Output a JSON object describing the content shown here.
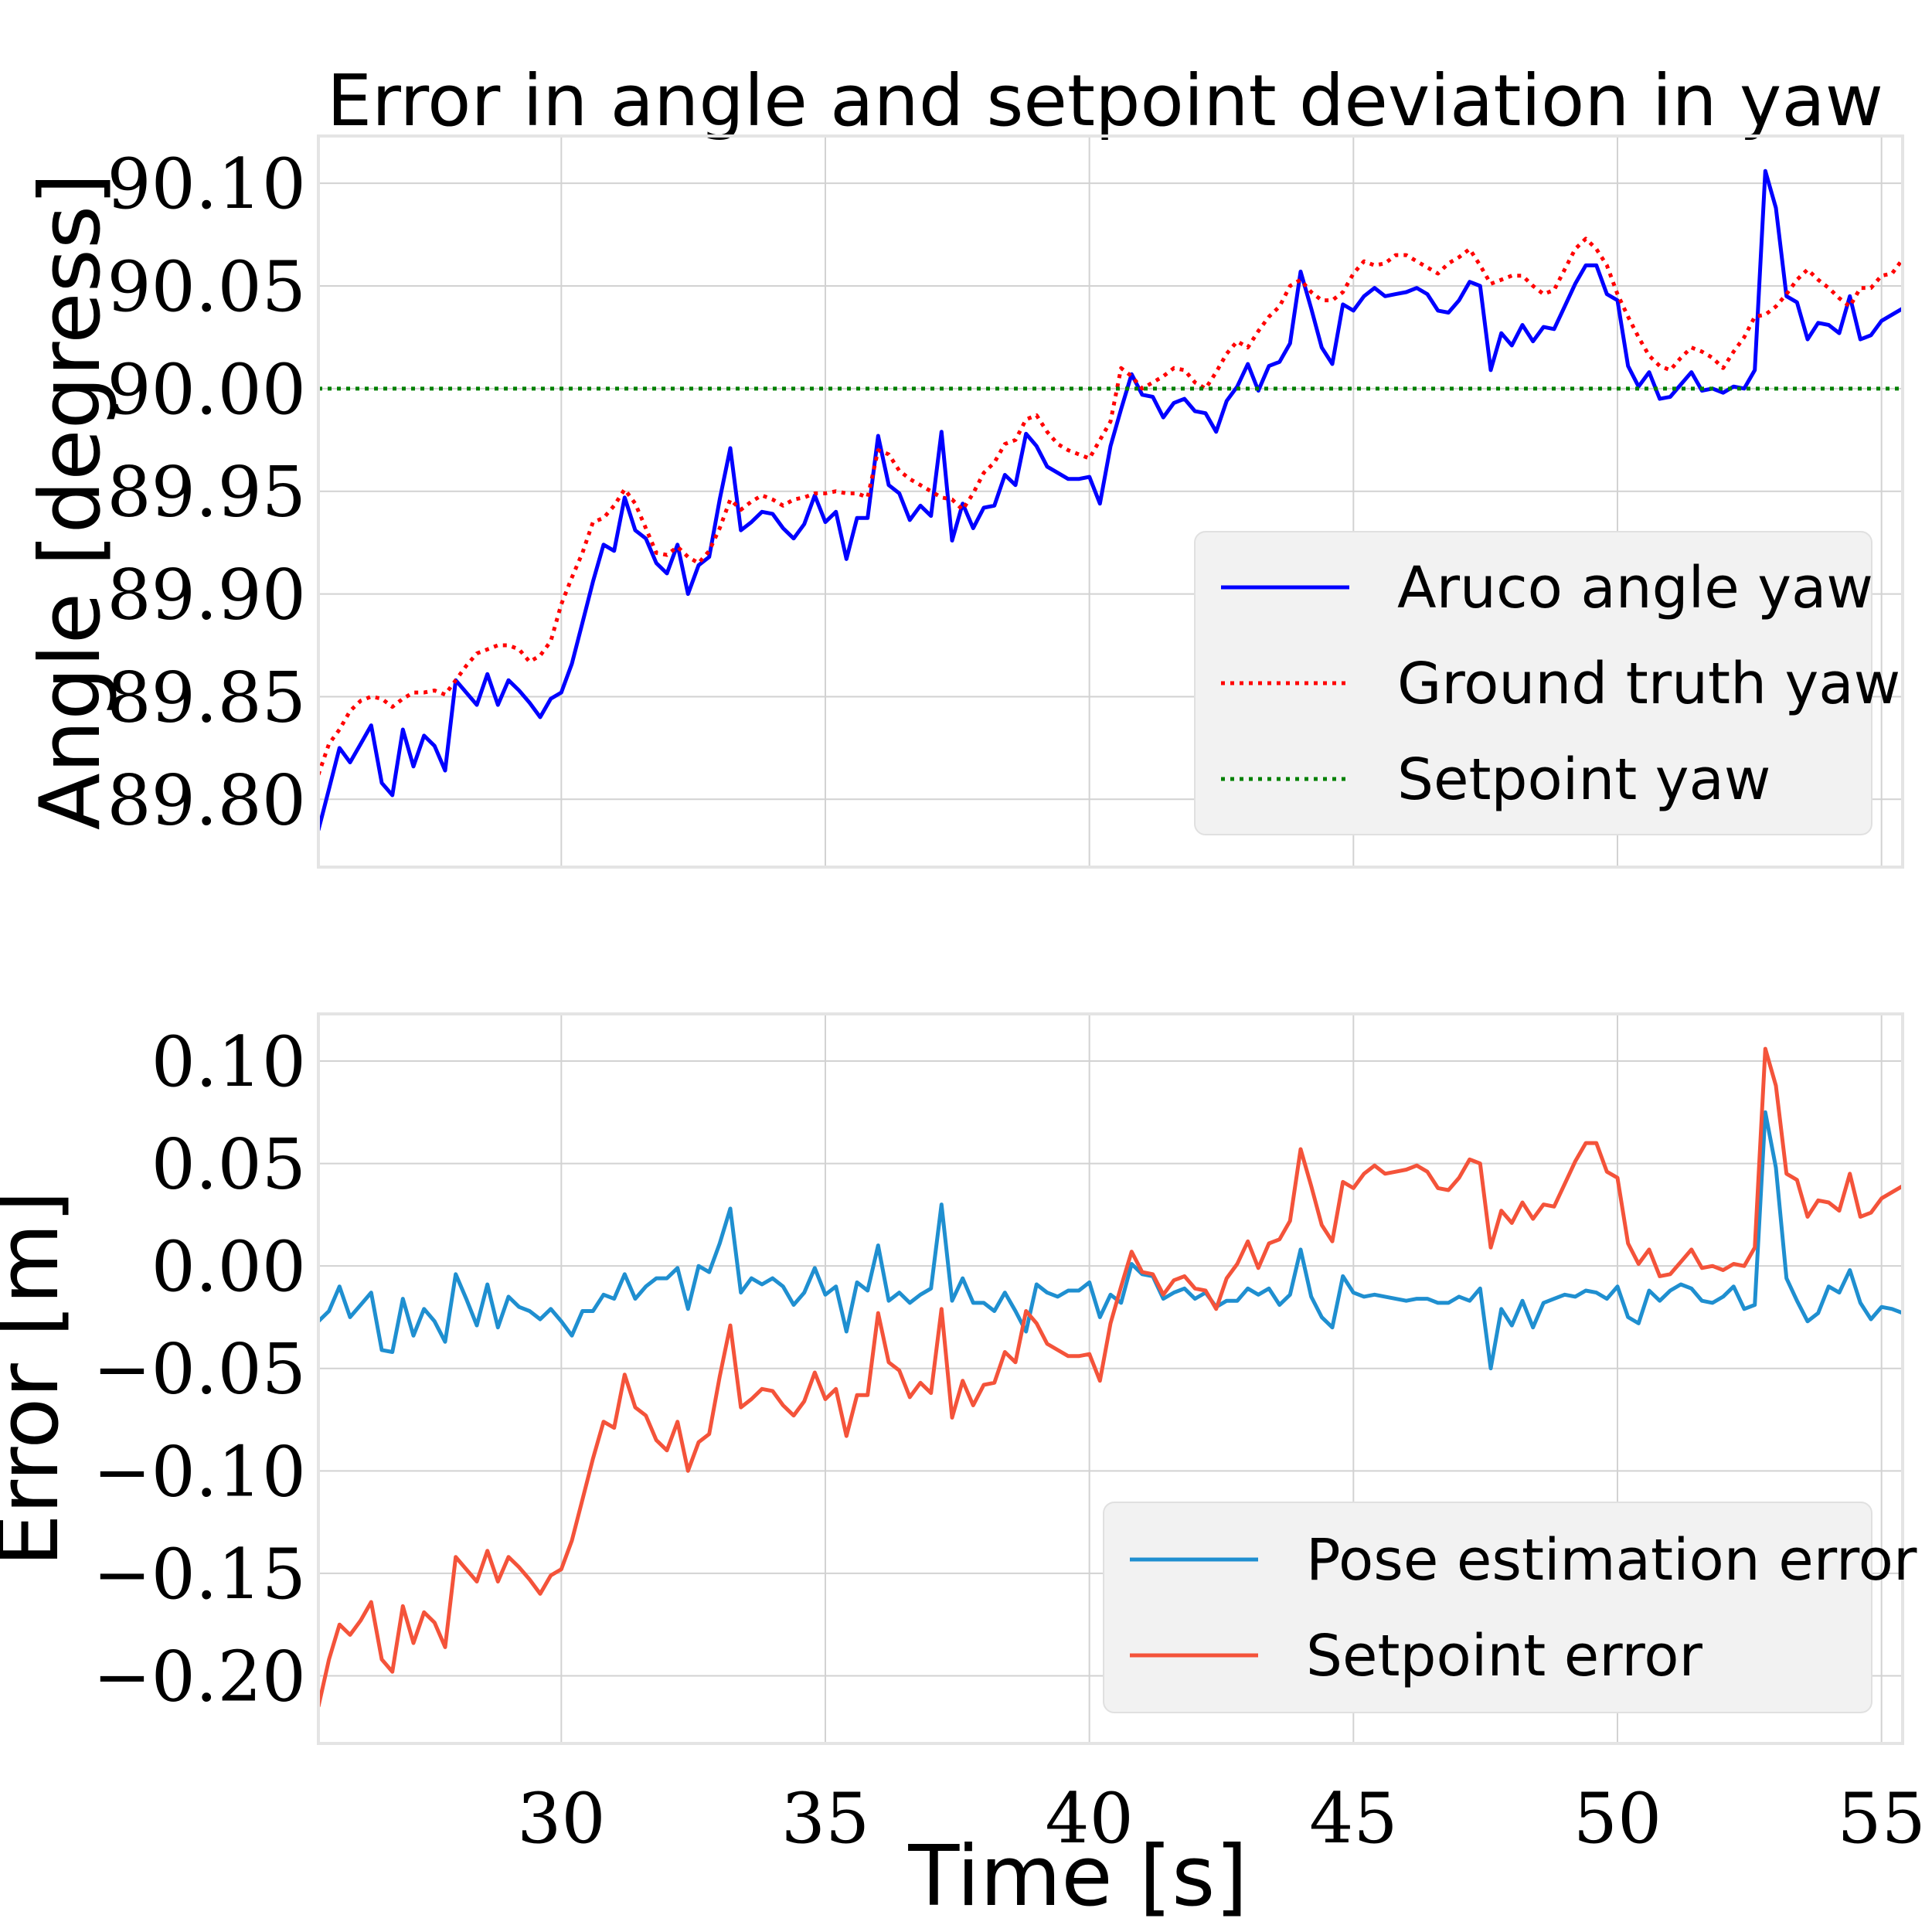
{
  "chart_data": [
    {
      "type": "line",
      "title": "Error in angle and setpoint deviation in yaw",
      "xlabel": "",
      "ylabel": "Angle [degress]",
      "xlim": [
        25.4,
        55.4
      ],
      "ylim": [
        89.767,
        90.123
      ],
      "xticks": [
        30,
        35,
        40,
        45,
        50,
        55
      ],
      "xtick_labels": [],
      "yticks": [
        89.8,
        89.85,
        89.9,
        89.95,
        90.0,
        90.05,
        90.1
      ],
      "ytick_labels": [
        "89.80",
        "89.85",
        "89.90",
        "89.95",
        "90.00",
        "90.05",
        "90.10"
      ],
      "grid": true,
      "legend_position": "lower-right",
      "x": [
        25.4,
        25.6,
        25.8,
        26.0,
        26.2,
        26.4,
        26.6,
        26.8,
        27.0,
        27.2,
        27.4,
        27.6,
        27.8,
        28.0,
        28.2,
        28.4,
        28.6,
        28.8,
        29.0,
        29.2,
        29.4,
        29.6,
        29.8,
        30.0,
        30.2,
        30.4,
        30.6,
        30.8,
        31.0,
        31.2,
        31.4,
        31.6,
        31.8,
        32.0,
        32.2,
        32.4,
        32.6,
        32.8,
        33.0,
        33.2,
        33.4,
        33.6,
        33.8,
        34.0,
        34.2,
        34.4,
        34.6,
        34.8,
        35.0,
        35.2,
        35.4,
        35.6,
        35.8,
        36.0,
        36.2,
        36.4,
        36.6,
        36.8,
        37.0,
        37.2,
        37.4,
        37.6,
        37.8,
        38.0,
        38.2,
        38.4,
        38.6,
        38.8,
        39.0,
        39.2,
        39.4,
        39.6,
        39.8,
        40.0,
        40.2,
        40.4,
        40.6,
        40.8,
        41.0,
        41.2,
        41.4,
        41.6,
        41.8,
        42.0,
        42.2,
        42.4,
        42.6,
        42.8,
        43.0,
        43.2,
        43.4,
        43.6,
        43.8,
        44.0,
        44.2,
        44.4,
        44.6,
        44.8,
        45.0,
        45.2,
        45.4,
        45.6,
        45.8,
        46.0,
        46.2,
        46.4,
        46.6,
        46.8,
        47.0,
        47.2,
        47.4,
        47.6,
        47.8,
        48.0,
        48.2,
        48.4,
        48.6,
        48.8,
        49.0,
        49.2,
        49.4,
        49.6,
        49.8,
        50.0,
        50.2,
        50.4,
        50.6,
        50.8,
        51.0,
        51.2,
        51.4,
        51.6,
        51.8,
        52.0,
        52.2,
        52.4,
        52.6,
        52.8,
        53.0,
        53.2,
        53.4,
        53.6,
        53.8,
        54.0,
        54.2,
        54.4,
        54.6,
        54.8,
        55.0,
        55.2,
        55.4
      ],
      "series": [
        {
          "name": "Aruco angle yaw",
          "color": "#0000ff",
          "style": "solid",
          "values": [
            89.785,
            89.805,
            89.825,
            89.818,
            89.827,
            89.836,
            89.808,
            89.802,
            89.834,
            89.816,
            89.831,
            89.826,
            89.814,
            89.858,
            89.852,
            89.846,
            89.861,
            89.846,
            89.858,
            89.853,
            89.847,
            89.84,
            89.849,
            89.852,
            89.866,
            89.886,
            89.906,
            89.924,
            89.921,
            89.947,
            89.931,
            89.927,
            89.915,
            89.91,
            89.924,
            89.9,
            89.914,
            89.918,
            89.946,
            89.971,
            89.931,
            89.935,
            89.94,
            89.939,
            89.932,
            89.927,
            89.934,
            89.948,
            89.935,
            89.94,
            89.917,
            89.937,
            89.937,
            89.977,
            89.953,
            89.949,
            89.936,
            89.943,
            89.938,
            89.979,
            89.926,
            89.944,
            89.932,
            89.942,
            89.943,
            89.958,
            89.953,
            89.978,
            89.972,
            89.962,
            89.959,
            89.956,
            89.956,
            89.957,
            89.944,
            89.972,
            89.99,
            90.007,
            89.997,
            89.996,
            89.986,
            89.993,
            89.995,
            89.989,
            89.988,
            89.979,
            89.994,
            90.001,
            90.012,
            89.999,
            90.011,
            90.013,
            90.022,
            90.057,
            90.039,
            90.02,
            90.012,
            90.041,
            90.038,
            90.045,
            90.049,
            90.045,
            90.046,
            90.047,
            90.049,
            90.046,
            90.038,
            90.037,
            90.043,
            90.052,
            90.05,
            90.009,
            90.027,
            90.021,
            90.031,
            90.023,
            90.03,
            90.029,
            90.04,
            90.051,
            90.06,
            90.06,
            90.046,
            90.043,
            90.011,
            90.001,
            90.008,
            89.995,
            89.996,
            90.002,
            90.008,
            89.999,
            90.0,
            89.998,
            90.001,
            90.0,
            90.009,
            90.106,
            90.088,
            90.045,
            90.042,
            90.024,
            90.032,
            90.031,
            90.027,
            90.045,
            90.024,
            90.026,
            90.033,
            90.036,
            90.039
          ]
        },
        {
          "name": "Ground truth yaw",
          "color": "#ff0000",
          "style": "dotted",
          "values": [
            89.812,
            89.827,
            89.834,
            89.843,
            89.848,
            89.85,
            89.849,
            89.845,
            89.849,
            89.852,
            89.852,
            89.853,
            89.851,
            89.858,
            89.865,
            89.871,
            89.873,
            89.875,
            89.875,
            89.873,
            89.867,
            89.87,
            89.877,
            89.895,
            89.908,
            89.92,
            89.935,
            89.937,
            89.943,
            89.951,
            89.944,
            89.932,
            89.92,
            89.919,
            89.923,
            89.918,
            89.915,
            89.921,
            89.932,
            89.946,
            89.941,
            89.945,
            89.948,
            89.946,
            89.943,
            89.946,
            89.947,
            89.949,
            89.949,
            89.95,
            89.949,
            89.949,
            89.947,
            89.97,
            89.968,
            89.96,
            89.956,
            89.953,
            89.95,
            89.947,
            89.946,
            89.941,
            89.949,
            89.959,
            89.964,
            89.973,
            89.975,
            89.985,
            89.987,
            89.979,
            89.973,
            89.97,
            89.968,
            89.966,
            89.975,
            89.984,
            90.01,
            90.006,
            90.0,
            90.003,
            90.006,
            90.01,
            90.009,
            90.003,
            90.0,
            90.008,
            90.017,
            90.023,
            90.02,
            90.028,
            90.035,
            90.04,
            90.05,
            90.053,
            90.047,
            90.043,
            90.043,
            90.047,
            90.056,
            90.062,
            90.06,
            90.061,
            90.065,
            90.065,
            90.062,
            90.059,
            90.056,
            90.061,
            90.064,
            90.068,
            90.06,
            90.051,
            90.053,
            90.055,
            90.055,
            90.05,
            90.046,
            90.048,
            90.058,
            90.068,
            90.073,
            90.068,
            90.06,
            90.046,
            90.035,
            90.025,
            90.016,
            90.011,
            90.009,
            90.015,
            90.02,
            90.018,
            90.015,
            90.01,
            90.018,
            90.025,
            90.035,
            90.036,
            90.04,
            90.046,
            90.053,
            90.058,
            90.053,
            90.049,
            90.044,
            90.04,
            90.049,
            90.049,
            90.055,
            90.056,
            90.063
          ]
        },
        {
          "name": "Setpoint yaw",
          "color": "#008000",
          "style": "dotted",
          "constant": 90.0
        }
      ]
    },
    {
      "type": "line",
      "title": "",
      "xlabel": "Time [s]",
      "ylabel": "Error [m]",
      "xlim": [
        25.4,
        55.4
      ],
      "ylim": [
        -0.233,
        0.123
      ],
      "xticks": [
        30,
        35,
        40,
        45,
        50,
        55
      ],
      "xtick_labels": [
        "30",
        "35",
        "40",
        "45",
        "50",
        "55"
      ],
      "yticks": [
        -0.2,
        -0.15,
        -0.1,
        -0.05,
        0.0,
        0.05,
        0.1
      ],
      "ytick_labels": [
        "−0.20",
        "−0.15",
        "−0.10",
        "−0.05",
        "0.00",
        "0.05",
        "0.10"
      ],
      "grid": true,
      "legend_position": "lower-right",
      "x": [
        25.4,
        25.6,
        25.8,
        26.0,
        26.2,
        26.4,
        26.6,
        26.8,
        27.0,
        27.2,
        27.4,
        27.6,
        27.8,
        28.0,
        28.2,
        28.4,
        28.6,
        28.8,
        29.0,
        29.2,
        29.4,
        29.6,
        29.8,
        30.0,
        30.2,
        30.4,
        30.6,
        30.8,
        31.0,
        31.2,
        31.4,
        31.6,
        31.8,
        32.0,
        32.2,
        32.4,
        32.6,
        32.8,
        33.0,
        33.2,
        33.4,
        33.6,
        33.8,
        34.0,
        34.2,
        34.4,
        34.6,
        34.8,
        35.0,
        35.2,
        35.4,
        35.6,
        35.8,
        36.0,
        36.2,
        36.4,
        36.6,
        36.8,
        37.0,
        37.2,
        37.4,
        37.6,
        37.8,
        38.0,
        38.2,
        38.4,
        38.6,
        38.8,
        39.0,
        39.2,
        39.4,
        39.6,
        39.8,
        40.0,
        40.2,
        40.4,
        40.6,
        40.8,
        41.0,
        41.2,
        41.4,
        41.6,
        41.8,
        42.0,
        42.2,
        42.4,
        42.6,
        42.8,
        43.0,
        43.2,
        43.4,
        43.6,
        43.8,
        44.0,
        44.2,
        44.4,
        44.6,
        44.8,
        45.0,
        45.2,
        45.4,
        45.6,
        45.8,
        46.0,
        46.2,
        46.4,
        46.6,
        46.8,
        47.0,
        47.2,
        47.4,
        47.6,
        47.8,
        48.0,
        48.2,
        48.4,
        48.6,
        48.8,
        49.0,
        49.2,
        49.4,
        49.6,
        49.8,
        50.0,
        50.2,
        50.4,
        50.6,
        50.8,
        51.0,
        51.2,
        51.4,
        51.6,
        51.8,
        52.0,
        52.2,
        52.4,
        52.6,
        52.8,
        53.0,
        53.2,
        53.4,
        53.6,
        53.8,
        54.0,
        54.2,
        54.4,
        54.6,
        54.8,
        55.0,
        55.2,
        55.4
      ],
      "series": [
        {
          "name": "Pose estimation error",
          "color": "#1f8fd0",
          "style": "solid",
          "values": [
            -0.027,
            -0.022,
            -0.01,
            -0.025,
            -0.019,
            -0.013,
            -0.041,
            -0.042,
            -0.016,
            -0.034,
            -0.021,
            -0.027,
            -0.037,
            -0.004,
            -0.016,
            -0.029,
            -0.009,
            -0.03,
            -0.015,
            -0.02,
            -0.022,
            -0.026,
            -0.021,
            -0.027,
            -0.034,
            -0.022,
            -0.022,
            -0.014,
            -0.016,
            -0.004,
            -0.016,
            -0.01,
            -0.006,
            -0.006,
            -0.001,
            -0.021,
            0.0,
            -0.003,
            0.011,
            0.028,
            -0.013,
            -0.006,
            -0.009,
            -0.006,
            -0.01,
            -0.019,
            -0.013,
            -0.001,
            -0.014,
            -0.01,
            -0.032,
            -0.008,
            -0.012,
            0.01,
            -0.017,
            -0.013,
            -0.018,
            -0.014,
            -0.011,
            0.03,
            -0.017,
            -0.006,
            -0.018,
            -0.018,
            -0.022,
            -0.013,
            -0.022,
            -0.032,
            -0.009,
            -0.013,
            -0.015,
            -0.012,
            -0.012,
            -0.008,
            -0.025,
            -0.014,
            -0.018,
            0.001,
            -0.004,
            -0.005,
            -0.016,
            -0.013,
            -0.011,
            -0.016,
            -0.013,
            -0.02,
            -0.017,
            -0.017,
            -0.011,
            -0.014,
            -0.011,
            -0.019,
            -0.014,
            0.008,
            -0.015,
            -0.025,
            -0.03,
            -0.005,
            -0.013,
            -0.015,
            -0.014,
            -0.015,
            -0.016,
            -0.017,
            -0.016,
            -0.016,
            -0.018,
            -0.018,
            -0.015,
            -0.017,
            -0.011,
            -0.05,
            -0.021,
            -0.029,
            -0.017,
            -0.03,
            -0.018,
            -0.016,
            -0.014,
            -0.015,
            -0.012,
            -0.013,
            -0.016,
            -0.01,
            -0.025,
            -0.028,
            -0.012,
            -0.017,
            -0.012,
            -0.009,
            -0.011,
            -0.017,
            -0.018,
            -0.015,
            -0.01,
            -0.021,
            -0.019,
            0.075,
            0.048,
            -0.006,
            -0.017,
            -0.027,
            -0.023,
            -0.01,
            -0.013,
            -0.002,
            -0.018,
            -0.026,
            -0.02,
            -0.021,
            -0.023
          ]
        },
        {
          "name": "Setpoint error",
          "color": "#f4533a",
          "style": "solid",
          "values": [
            -0.215,
            -0.192,
            -0.175,
            -0.18,
            -0.173,
            -0.164,
            -0.192,
            -0.198,
            -0.166,
            -0.184,
            -0.169,
            -0.174,
            -0.186,
            -0.142,
            -0.148,
            -0.154,
            -0.139,
            -0.154,
            -0.142,
            -0.147,
            -0.153,
            -0.16,
            -0.151,
            -0.148,
            -0.134,
            -0.114,
            -0.094,
            -0.076,
            -0.079,
            -0.053,
            -0.069,
            -0.073,
            -0.085,
            -0.09,
            -0.076,
            -0.1,
            -0.086,
            -0.082,
            -0.054,
            -0.029,
            -0.069,
            -0.065,
            -0.06,
            -0.061,
            -0.068,
            -0.073,
            -0.066,
            -0.052,
            -0.065,
            -0.06,
            -0.083,
            -0.063,
            -0.063,
            -0.023,
            -0.047,
            -0.051,
            -0.064,
            -0.057,
            -0.062,
            -0.021,
            -0.074,
            -0.056,
            -0.068,
            -0.058,
            -0.057,
            -0.042,
            -0.047,
            -0.022,
            -0.028,
            -0.038,
            -0.041,
            -0.044,
            -0.044,
            -0.043,
            -0.056,
            -0.028,
            -0.01,
            0.007,
            -0.003,
            -0.004,
            -0.014,
            -0.007,
            -0.005,
            -0.011,
            -0.012,
            -0.021,
            -0.006,
            0.001,
            0.012,
            -0.001,
            0.011,
            0.013,
            0.022,
            0.057,
            0.039,
            0.02,
            0.012,
            0.041,
            0.038,
            0.045,
            0.049,
            0.045,
            0.046,
            0.047,
            0.049,
            0.046,
            0.038,
            0.037,
            0.043,
            0.052,
            0.05,
            0.009,
            0.027,
            0.021,
            0.031,
            0.023,
            0.03,
            0.029,
            0.04,
            0.051,
            0.06,
            0.06,
            0.046,
            0.043,
            0.011,
            0.001,
            0.008,
            -0.005,
            -0.004,
            0.002,
            0.008,
            -0.001,
            0.0,
            -0.002,
            0.001,
            0.0,
            0.009,
            0.106,
            0.088,
            0.045,
            0.042,
            0.024,
            0.032,
            0.031,
            0.027,
            0.045,
            0.024,
            0.026,
            0.033,
            0.036,
            0.039
          ]
        }
      ]
    }
  ]
}
